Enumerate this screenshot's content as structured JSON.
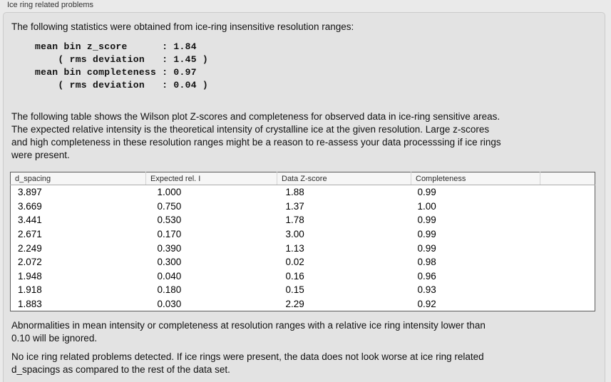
{
  "panel": {
    "title": "Ice ring related problems"
  },
  "texts": {
    "intro": "The following statistics were obtained from ice-ring insensitive resolution ranges:",
    "stats_lines": [
      "mean bin z_score      : 1.84",
      "    ( rms deviation   : 1.45 )",
      "mean bin completeness : 0.97",
      "    ( rms deviation   : 0.04 )"
    ],
    "stats": {
      "mean_bin_z_score": "1.84",
      "z_score_rms_deviation": "1.45",
      "mean_bin_completeness": "0.97",
      "completeness_rms_deviation": "0.04"
    },
    "table_intro_lines": [
      "The following table shows the Wilson plot Z-scores and completeness for observed data in ice-ring sensitive areas.",
      "The expected relative intensity is the theoretical intensity of crystalline ice at the given resolution. Large z-scores",
      "and high completeness in these resolution ranges might be a reason to re-assess your data processsing if ice rings",
      "were present."
    ],
    "footnote_lines": [
      "Abnormalities in mean intensity or completeness at resolution ranges with a relative ice ring intensity lower than",
      "0.10 will be ignored."
    ],
    "conclusion_lines": [
      "No ice ring related problems detected. If ice rings were present, the data does not look worse at ice ring related",
      "d_spacings as compared to the rest of the data set."
    ]
  },
  "table": {
    "columns": [
      "d_spacing",
      "Expected rel. I",
      "Data Z-score",
      "Completeness"
    ],
    "rows": [
      [
        "3.897",
        "1.000",
        "1.88",
        "0.99"
      ],
      [
        "3.669",
        "0.750",
        "1.37",
        "1.00"
      ],
      [
        "3.441",
        "0.530",
        "1.78",
        "0.99"
      ],
      [
        "2.671",
        "0.170",
        "3.00",
        "0.99"
      ],
      [
        "2.249",
        "0.390",
        "1.13",
        "0.99"
      ],
      [
        "2.072",
        "0.300",
        "0.02",
        "0.98"
      ],
      [
        "1.948",
        "0.040",
        "0.16",
        "0.96"
      ],
      [
        "1.918",
        "0.180",
        "0.15",
        "0.93"
      ],
      [
        "1.883",
        "0.030",
        "2.29",
        "0.92"
      ]
    ]
  },
  "colors": {
    "page_background": "#eaeaea",
    "groupbox_background": "#e3e3e3",
    "groupbox_border": "#cbcbcb",
    "table_border": "#5c5c5c",
    "table_header_background": "#f6f6f6",
    "table_body_background": "#ffffff",
    "text": "#111111"
  }
}
